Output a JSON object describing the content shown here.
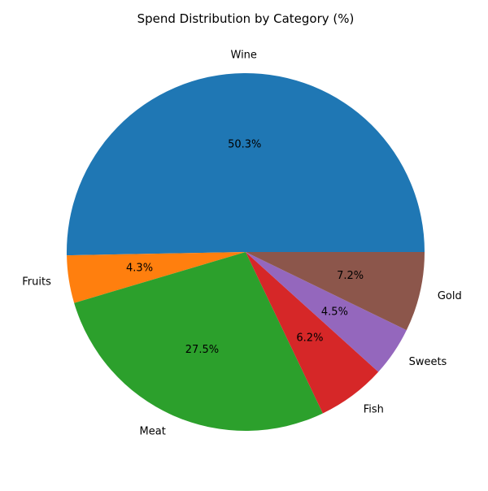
{
  "chart_data": {
    "type": "pie",
    "title": "Spend Distribution by Category (%)",
    "categories": [
      "Wine",
      "Fruits",
      "Meat",
      "Fish",
      "Sweets",
      "Gold"
    ],
    "values": [
      50.3,
      4.3,
      27.5,
      6.2,
      4.5,
      7.2
    ],
    "value_labels": [
      "50.3%",
      "4.3%",
      "27.5%",
      "6.2%",
      "4.5%",
      "7.2%"
    ],
    "colors": [
      "#1f77b4",
      "#ff7f0e",
      "#2ca02c",
      "#d62728",
      "#9467bd",
      "#8c564b"
    ],
    "start_angle_deg": 0,
    "direction": "counterclockwise",
    "legend": "none"
  }
}
